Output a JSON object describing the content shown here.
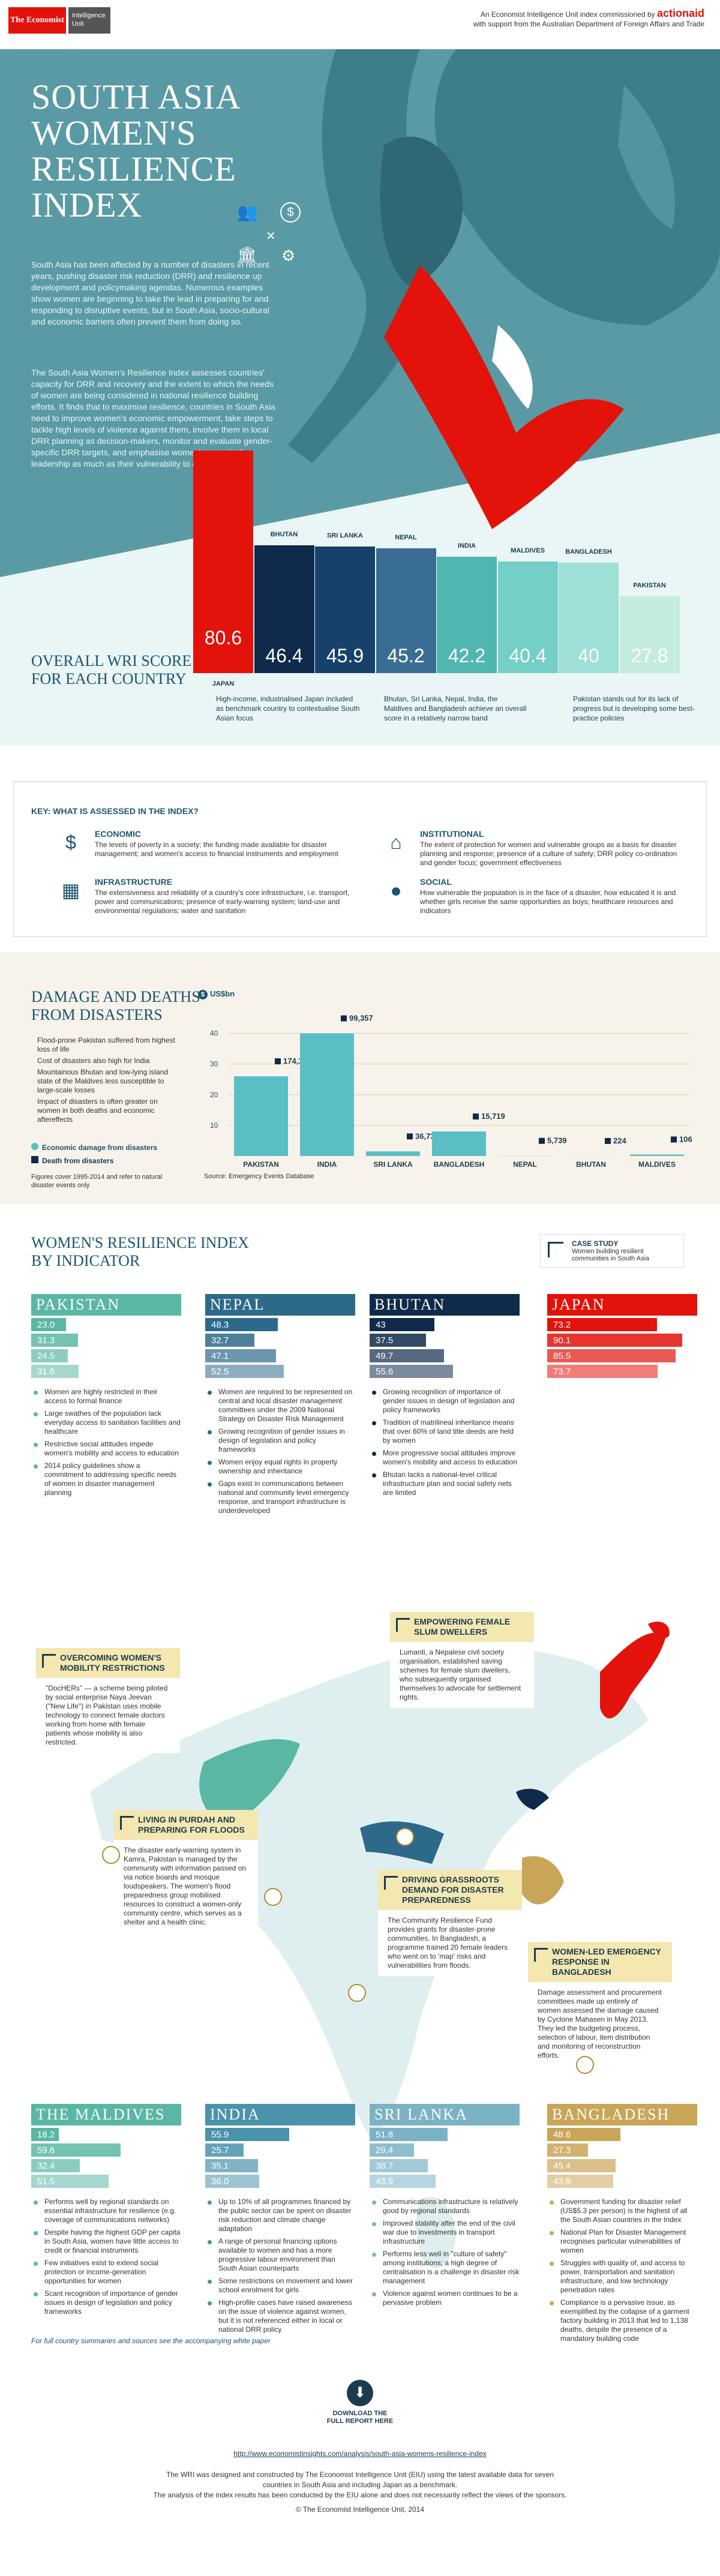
{
  "header": {
    "logo_economist": "The Economist",
    "logo_eiu": "Intelligence Unit",
    "commission": "An Economist Intelligence Unit index commissioned by",
    "brand": "actionaid",
    "support": "with support from the Australian Department of Foreign Affairs and Trade"
  },
  "hero": {
    "title": "South Asia Women's Resilience Index",
    "intro1": "South Asia has been affected by a number of disasters in recent years, pushing disaster risk reduction (DRR) and resilience up development and policymaking agendas. Numerous examples show women are beginning to take the lead in preparing for and responding to disruptive events, but in South Asia, socio-cultural and economic barriers often prevent them from doing so.",
    "intro2": "The South Asia Women's Resilience Index assesses countries' capacity for DRR and recovery and the extent to which the needs of women are being considered in national resilience building efforts. It finds that to maximise resilience, countries in South Asia need to improve women's economic empowerment, take steps to tackle high levels of violence against them, involve them in local DRR planning as decision-makers, monitor and evaluate gender-specific DRR targets, and emphasise women's capacity for leadership as much as their vulnerability to disaster.",
    "wri_title": "Overall WRI score for each country",
    "note1": "High-income, industrialised Japan included as benchmark country to contextualise South Asian focus",
    "note2": "Bhutan, Sri Lanka, Nepal, India, the Maldives and Bangladesh achieve an overall score in a relatively narrow band",
    "note3": "Pakistan stands out for its lack of progress but is developing some best-practice policies"
  },
  "chart_data": [
    {
      "type": "bar",
      "title": "Overall WRI score for each country",
      "categories": [
        "Japan",
        "Bhutan",
        "Sri Lanka",
        "Nepal",
        "India",
        "Maldives",
        "Bangladesh",
        "Pakistan"
      ],
      "values": [
        80.6,
        46.4,
        45.9,
        45.2,
        42.2,
        40.4,
        40.0,
        27.8
      ],
      "labels": [
        "80.6",
        "46.4",
        "45.9",
        "45.2",
        "42.2",
        "40.4",
        "40",
        "27.8"
      ],
      "colors": [
        "#e3120b",
        "#0f2a4a",
        "#16416a",
        "#3a6d93",
        "#4fb7b0",
        "#74cfc6",
        "#9edfd6",
        "#c3ecdf"
      ]
    },
    {
      "type": "bar",
      "title": "Damage and deaths from disasters",
      "ylabel": "US$bn",
      "categories": [
        "Pakistan",
        "India",
        "Sri Lanka",
        "Bangladesh",
        "Nepal",
        "Bhutan",
        "Maldives"
      ],
      "series": [
        {
          "name": "Economic damage from disasters",
          "values": [
            26,
            40,
            1.5,
            8,
            0.05,
            0.01,
            0.5
          ]
        },
        {
          "name": "Death from disasters",
          "labels": [
            "174,187",
            "99,357",
            "36,730",
            "15,719",
            "5,739",
            "224",
            "106"
          ]
        }
      ],
      "yticks": [
        "10",
        "20",
        "30",
        "40"
      ],
      "ylim": [
        0,
        45
      ]
    }
  ],
  "key": {
    "title": "KEY: WHAT IS ASSESSED IN THE INDEX?",
    "items": [
      {
        "t": "Economic",
        "d": "The levels of poverty in a society; the funding made available for disaster management; and women's access to financial instruments and employment",
        "icon": "$"
      },
      {
        "t": "Infrastructure",
        "d": "The extensiveness and reliability of a country's core infrastructure, i.e. transport, power and communications; presence of early-warning system; land-use and environmental regulations; water and sanitation",
        "icon": "▦"
      },
      {
        "t": "Institutional",
        "d": "The extent of protection for women and vulnerable groups as a basis for disaster planning and response; presence of a culture of safety; DRR policy co-ordination and gender focus; government effectiveness",
        "icon": "⌂"
      },
      {
        "t": "Social",
        "d": "How vulnerable the population is in the face of a disaster, how educated it is and whether girls receive the same opportunities as boys; healthcare resources and indicators",
        "icon": "●"
      }
    ]
  },
  "damage": {
    "title": "Damage and deaths from disasters",
    "unit": "US$bn",
    "notes": [
      "Flood-prone Pakistan suffered from highest loss of life",
      "Cost of disasters also high for India",
      "Mountainous Bhutan and low-lying island state of the Maldives less susceptible to large-scale losses",
      "Impact of disasters is often greater on women in both deaths and economic aftereffects"
    ],
    "legend_econ": "Economic damage from disasters",
    "legend_death": "Death from disasters",
    "footnote": "Figures cover 1995-2014 and refer to natural disaster events only",
    "source": "Source: Emergency Events Database"
  },
  "indicator": {
    "title": "Women's resilience index by indicator",
    "case_study": "CASE STUDY",
    "case_desc": "Women building resilient communities in South Asia",
    "countries": [
      {
        "name": "Pakistan",
        "color": "#5ab7a5",
        "scores": [
          "23.0",
          "31.3",
          "24.5",
          "31.6"
        ],
        "vals": [
          23.0,
          31.3,
          24.5,
          31.6
        ],
        "bullets": [
          "Women are highly restricted in their access to formal finance",
          "Large swathes of the population lack everyday access to sanitation facilities and healthcare",
          "Restrictive social attitudes impede women's mobility and access to education",
          "2014 policy guidelines show a commitment to addressing specific needs of women in disaster management planning"
        ]
      },
      {
        "name": "Nepal",
        "color": "#2d6a8a",
        "scores": [
          "48.3",
          "32.7",
          "47.1",
          "52.5"
        ],
        "vals": [
          48.3,
          32.7,
          47.1,
          52.5
        ],
        "bullets": [
          "Women are required to be represented on central and local disaster management committees under the 2009 National Strategy on Disaster Risk Management",
          "Growing recognition of gender issues in design of legislation and policy frameworks",
          "Women enjoy equal rights in property ownership and inheritance",
          "Gaps exist in communications between national and community level emergency response, and transport infrastructure is underdeveloped"
        ]
      },
      {
        "name": "Bhutan",
        "color": "#0f2a4a",
        "scores": [
          "43",
          "37.5",
          "49.7",
          "55.6"
        ],
        "vals": [
          43,
          37.5,
          49.7,
          55.6
        ],
        "bullets": [
          "Growing recognition of importance of gender issues in design of legislation and policy frameworks",
          "Tradition of matrilineal inheritance means that over 60% of land title deeds are held by women",
          "More progressive social attitudes improve women's mobility and access to education",
          "Bhutan lacks a national-level critical infrastructure plan and social safety nets are limited"
        ]
      },
      {
        "name": "Japan",
        "color": "#e3120b",
        "scores": [
          "73.2",
          "90.1",
          "85.5",
          "73.7"
        ],
        "vals": [
          73.2,
          90.1,
          85.5,
          73.7
        ],
        "bullets": []
      },
      {
        "name": "The Maldives",
        "color": "#5ab7a5",
        "scores": [
          "18.2",
          "59.6",
          "32.4",
          "51.5"
        ],
        "vals": [
          18.2,
          59.6,
          32.4,
          51.5
        ],
        "bullets": [
          "Performs well by regional standards on essential infrastructure for resilience (e.g. coverage of communications networks)",
          "Despite having the highest GDP per capita in South Asia, women have little access to credit or financial instruments",
          "Few initiatives exist to extend social protection or income-generation opportunities for women",
          "Scant recognition of importance of gender issues in design of legislation and policy frameworks"
        ]
      },
      {
        "name": "India",
        "color": "#4a93aa",
        "scores": [
          "55.9",
          "25.7",
          "35.1",
          "36.0"
        ],
        "vals": [
          55.9,
          25.7,
          35.1,
          36.0
        ],
        "bullets": [
          "Up to 10% of all programmes financed by the public sector can be spent on disaster risk reduction and climate change adaptation",
          "A range of personal financing options available to women and has a more progressive labour environment than South Asian counterparts",
          "Some restrictions on movement and lower school enrolment for girls",
          "High-profile cases have raised awareness on the issue of violence against women, but it is not referenced either in local or national DRR policy"
        ]
      },
      {
        "name": "Sri Lanka",
        "color": "#7bb3c4",
        "scores": [
          "51.8",
          "29.4",
          "38.7",
          "43.9"
        ],
        "vals": [
          51.8,
          29.4,
          38.7,
          43.9
        ],
        "bullets": [
          "Communications infrastructure is relatively good by regional standards",
          "Improved stability after the end of the civil war due to investments in transport infrastructure",
          "Performs less well in \"culture of safety\" among institutions; a high degree of centralisation is a challenge in disaster risk management",
          "Violence against women continues to be a pervasive problem"
        ]
      },
      {
        "name": "Bangladesh",
        "color": "#c9a558",
        "scores": [
          "48.6",
          "27.3",
          "45.4",
          "43.8"
        ],
        "vals": [
          48.6,
          27.3,
          45.4,
          43.8
        ],
        "bullets": [
          "Government funding for disaster relief (US$5.3 per person) is the highest of all the South Asian countries in the Index",
          "National Plan for Disaster Management recognises particular vulnerabilities of women",
          "Struggles with quality of, and access to power, transportation and sanitation infrastructure, and low technology penetration rates",
          "Compliance is a pervasive issue, as exemplified by the collapse of a garment factory building in 2013 that led to 1,138 deaths, despite the presence of a mandatory building code"
        ]
      }
    ],
    "cases": [
      {
        "t": "Overcoming women's mobility restrictions",
        "d": "\"DocHERs\" — a scheme being piloted by social enterprise Naya Jeevan (\"New Life\") in Pakistan uses mobile technology to connect female doctors working from home with female patients whose mobility is also restricted."
      },
      {
        "t": "Empowering female slum dwellers",
        "d": "Lumanti, a Nepalese civil society organisation, established saving schemes for female slum dwellers, who subsequently organised themselves to advocate for settlement rights."
      },
      {
        "t": "Living in purdah and preparing for floods",
        "d": "The disaster early-warning system in Kamra, Pakistan is managed by the community with information passed on via notice boards and mosque loudspeakers. The women's flood preparedness group mobilised resources to construct a women-only community centre, which serves as a shelter and a health clinic."
      },
      {
        "t": "Driving grassroots demand for disaster preparedness",
        "d": "The Community Resilience Fund provides grants for disaster-prone communities. In Bangladesh, a programme trained 20 female leaders who went on to 'map' risks and vulnerabilities from floods."
      },
      {
        "t": "Women-led emergency response in Bangladesh",
        "d": "Damage assessment and procurement committees made up entirely of women assessed the damage caused by Cyclone Mahasen in May 2013. They led the budgeting process, selection of labour, item distribution and monitoring of reconstruction efforts."
      }
    ],
    "full_summaries": "For full country summaries and sources see the accompanying white paper"
  },
  "footer": {
    "download": "DOWNLOAD THE FULL REPORT HERE",
    "url": "http://www.economistinsights.com/analysis/south-asia-womens-resilience-index",
    "line1": "The WRI was designed and constructed by The Economist Intelligence Unit (EIU) using the latest available data for seven",
    "line2": "countries in South Asia and including Japan as a benchmark.",
    "line3": "The analysis of the index results has been conducted by the EIU alone and does not necessarily reflect the views of the sponsors.",
    "copyright": "© The Economist Intelligence Unit, 2014"
  }
}
